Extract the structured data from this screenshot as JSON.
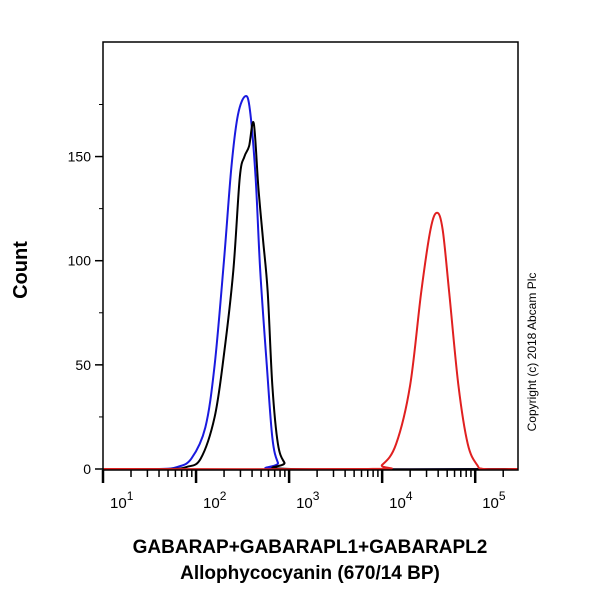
{
  "chart_data": {
    "type": "line",
    "title": "",
    "xlabel": "GABARAP+GABARAPL1+GABARAPL2",
    "xlabel2": "Allophycocyanin (670/14 BP)",
    "ylabel": "Count",
    "xscale": "log",
    "xlim_log10": [
      1,
      5.46
    ],
    "ylim": [
      0,
      205
    ],
    "yticks": [
      0,
      50,
      100,
      150
    ],
    "xticks": [
      {
        "base": "10",
        "exp": "1"
      },
      {
        "base": "10",
        "exp": "2"
      },
      {
        "base": "10",
        "exp": "3"
      },
      {
        "base": "10",
        "exp": "4"
      },
      {
        "base": "10",
        "exp": "5"
      }
    ],
    "copyright": "Copyright (c) 2018 Abcam Plc",
    "series": [
      {
        "name": "blue",
        "color": "#1a1adf",
        "points": [
          [
            1.6,
            0
          ],
          [
            1.8,
            1
          ],
          [
            1.95,
            5
          ],
          [
            2.1,
            20
          ],
          [
            2.2,
            50
          ],
          [
            2.3,
            100
          ],
          [
            2.38,
            145
          ],
          [
            2.45,
            170
          ],
          [
            2.53,
            179
          ],
          [
            2.58,
            172
          ],
          [
            2.64,
            140
          ],
          [
            2.69,
            95
          ],
          [
            2.76,
            50
          ],
          [
            2.82,
            15
          ],
          [
            2.88,
            3
          ],
          [
            2.95,
            0
          ]
        ]
      },
      {
        "name": "black",
        "color": "#000000",
        "points": [
          [
            1.7,
            0
          ],
          [
            1.9,
            1
          ],
          [
            2.05,
            5
          ],
          [
            2.2,
            25
          ],
          [
            2.3,
            55
          ],
          [
            2.4,
            95
          ],
          [
            2.47,
            140
          ],
          [
            2.52,
            150
          ],
          [
            2.57,
            155
          ],
          [
            2.62,
            166
          ],
          [
            2.67,
            135
          ],
          [
            2.72,
            110
          ],
          [
            2.77,
            85
          ],
          [
            2.82,
            40
          ],
          [
            2.88,
            12
          ],
          [
            2.95,
            3
          ],
          [
            3.02,
            0
          ]
        ]
      },
      {
        "name": "red",
        "color": "#e02020",
        "points": [
          [
            3.85,
            0
          ],
          [
            4.0,
            2
          ],
          [
            4.15,
            12
          ],
          [
            4.3,
            40
          ],
          [
            4.42,
            85
          ],
          [
            4.52,
            115
          ],
          [
            4.59,
            123
          ],
          [
            4.65,
            115
          ],
          [
            4.72,
            85
          ],
          [
            4.82,
            40
          ],
          [
            4.92,
            12
          ],
          [
            5.02,
            2
          ],
          [
            5.1,
            0
          ]
        ]
      }
    ]
  }
}
